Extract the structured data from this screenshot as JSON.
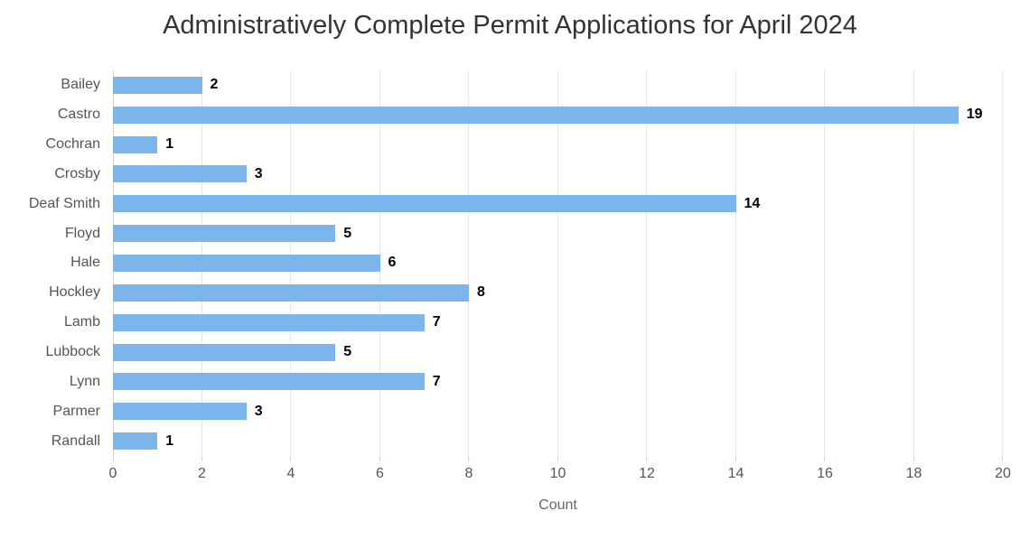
{
  "chart_data": {
    "type": "bar",
    "orientation": "horizontal",
    "title": "Administratively Complete Permit Applications for April 2024",
    "xlabel": "Count",
    "ylabel": "",
    "categories": [
      "Bailey",
      "Castro",
      "Cochran",
      "Crosby",
      "Deaf Smith",
      "Floyd",
      "Hale",
      "Hockley",
      "Lamb",
      "Lubbock",
      "Lynn",
      "Parmer",
      "Randall"
    ],
    "values": [
      2,
      19,
      1,
      3,
      14,
      5,
      6,
      8,
      7,
      5,
      7,
      3,
      1
    ],
    "xlim": [
      0,
      20
    ],
    "xticks": [
      0,
      2,
      4,
      6,
      8,
      10,
      12,
      14,
      16,
      18,
      20
    ],
    "grid": true,
    "legend": false,
    "data_labels": true,
    "colors": {
      "bar": "#7CB5EC",
      "grid": "#E6E6E6",
      "axis_line": "#CCD6EB",
      "tick_mark": "#CCD6EB",
      "title_text": "#333333",
      "category_text": "#555555",
      "tick_text": "#555555",
      "value_text": "#000000",
      "axis_title_text": "#666666"
    }
  }
}
